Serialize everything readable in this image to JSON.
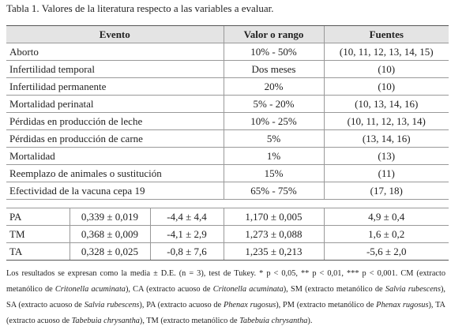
{
  "title": "Tabla 1. Valores de la literatura respecto a las variables a evaluar.",
  "table": {
    "header": [
      "Evento",
      "Valor o rango",
      "Fuentes"
    ],
    "rows": [
      [
        "Aborto",
        "10% - 50%",
        "(10, 11, 12, 13, 14, 15)"
      ],
      [
        "Infertilidad temporal",
        "Dos meses",
        "(10)"
      ],
      [
        "Infertilidad permanente",
        "20%",
        "(10)"
      ],
      [
        "Mortalidad perinatal",
        "5% - 20%",
        "(10, 13, 14, 16)"
      ],
      [
        "Pérdidas en producción de leche",
        "10% - 25%",
        "(10, 11, 12, 13, 14)"
      ],
      [
        "Pérdidas en producción de carne",
        "5%",
        "(13, 14, 16)"
      ],
      [
        "Mortalidad",
        "1%",
        "(13)"
      ],
      [
        "Reemplazo de animales o sustitución",
        "15%",
        "(11)"
      ],
      [
        "Efectividad de la vacuna cepa 19",
        "65% - 75%",
        "(17, 18)"
      ]
    ]
  },
  "table2": {
    "rows": [
      [
        "PA",
        "0,339 ± 0,019",
        "-4,4 ± 4,4",
        "1,170 ± 0,005",
        "4,9 ± 0,4"
      ],
      [
        "TM",
        "0,368 ± 0,009",
        "-4,1 ± 2,9",
        "1,273 ± 0,088",
        "1,6 ± 0,2"
      ],
      [
        "TA",
        "0,328 ± 0,025",
        "-0,8 ± 7,6",
        "1,235 ± 0,213",
        "-5,6 ± 2,0"
      ]
    ]
  },
  "footnote": [
    {
      "text": "Los resultados se expresan como la media ± D.E. (n = 3), test de Tukey. * p < 0,05, ** p < 0,01, *** p < 0,001. CM (extracto metanólico de ",
      "italic": false
    },
    {
      "text": "Critonella acuminata",
      "italic": true
    },
    {
      "text": "), CA (extracto acuoso de ",
      "italic": false
    },
    {
      "text": "Critonella acuminata",
      "italic": true
    },
    {
      "text": "), SM (extracto metanólico de ",
      "italic": false
    },
    {
      "text": "Salvia rubescens",
      "italic": true
    },
    {
      "text": "), SA (extracto acuoso de ",
      "italic": false
    },
    {
      "text": "Salvia rubescens",
      "italic": true
    },
    {
      "text": "), PA (extracto acuoso de ",
      "italic": false
    },
    {
      "text": "Phenax rugosus",
      "italic": true
    },
    {
      "text": "), PM (extracto metanólico de ",
      "italic": false
    },
    {
      "text": "Phenax rugosus",
      "italic": true
    },
    {
      "text": "), TA (extracto acuoso de ",
      "italic": false
    },
    {
      "text": "Tabebuia chrysantha",
      "italic": true
    },
    {
      "text": "), TM (extracto metanólico de ",
      "italic": false
    },
    {
      "text": "Tabebuia chrysantha",
      "italic": true
    },
    {
      "text": ").",
      "italic": false
    }
  ]
}
